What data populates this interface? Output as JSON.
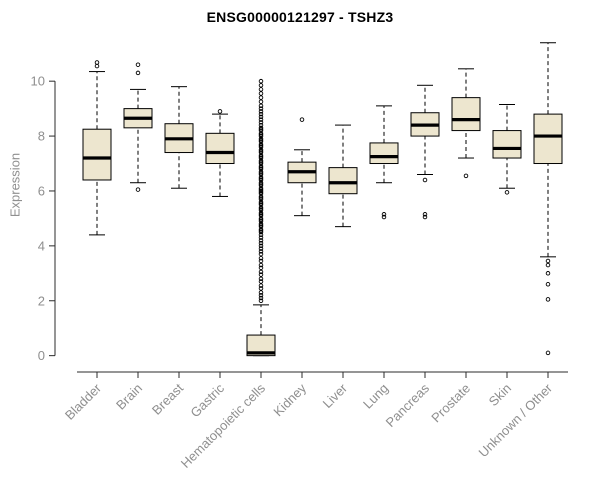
{
  "chart_data": {
    "type": "boxplot",
    "title": "ENSG00000121297 - TSHZ3",
    "xlabel": "",
    "ylabel": "Expression",
    "ylim": [
      -0.45,
      11.5
    ],
    "yticks": [
      0,
      2,
      4,
      6,
      8,
      10
    ],
    "grid": false,
    "legend": "none",
    "box_fill": "#EDE6CF",
    "box_stroke": "#000000",
    "median_color": "#000000",
    "label_color": "#8f8f8f",
    "axis_color": "#2b2b2b",
    "categories": [
      "Bladder",
      "Brain",
      "Breast",
      "Gastric",
      "Hematopoietic cells",
      "Kidney",
      "Liver",
      "Lung",
      "Pancreas",
      "Prostate",
      "Skin",
      "Unknown / Other"
    ],
    "series": [
      {
        "category": "Bladder",
        "low": 4.4,
        "q1": 6.4,
        "median": 7.2,
        "q3": 8.25,
        "high": 10.35,
        "outliers": [
          10.68,
          10.55
        ]
      },
      {
        "category": "Brain",
        "low": 6.3,
        "q1": 8.3,
        "median": 8.65,
        "q3": 9.0,
        "high": 9.7,
        "outliers": [
          10.6,
          10.3,
          6.05
        ]
      },
      {
        "category": "Breast",
        "low": 6.1,
        "q1": 7.4,
        "median": 7.9,
        "q3": 8.45,
        "high": 9.8,
        "outliers": []
      },
      {
        "category": "Gastric",
        "low": 5.8,
        "q1": 7.0,
        "median": 7.4,
        "q3": 8.1,
        "high": 8.8,
        "outliers": [
          8.9
        ]
      },
      {
        "category": "Hematopoietic cells",
        "low": 0.0,
        "q1": 0.0,
        "median": 0.1,
        "q3": 0.75,
        "high": 1.85,
        "outliers": [
          2.0,
          2.1,
          2.2,
          2.3,
          2.45,
          2.55,
          2.7,
          2.8,
          2.95,
          3.05,
          3.2,
          3.3,
          3.45,
          3.55,
          3.7,
          3.8,
          3.9,
          4.0,
          4.1,
          4.2,
          4.3,
          4.4,
          4.5,
          4.55,
          4.6,
          4.7,
          4.75,
          4.8,
          4.9,
          4.95,
          5.0,
          5.1,
          5.15,
          5.2,
          5.3,
          5.35,
          5.4,
          5.5,
          5.55,
          5.6,
          5.7,
          5.75,
          5.8,
          5.9,
          5.95,
          6.0,
          6.05,
          6.1,
          6.2,
          6.25,
          6.3,
          6.4,
          6.45,
          6.5,
          6.6,
          6.65,
          6.7,
          6.8,
          6.85,
          6.9,
          7.0,
          7.05,
          7.1,
          7.2,
          7.25,
          7.3,
          7.4,
          7.45,
          7.5,
          7.6,
          7.65,
          7.7,
          7.8,
          7.85,
          7.9,
          8.0,
          8.05,
          8.1,
          8.2,
          8.25,
          8.3,
          8.4,
          8.5,
          8.6,
          8.7,
          8.8,
          8.9,
          9.0,
          9.1,
          9.25,
          9.4,
          9.55,
          9.7,
          9.85,
          10.0
        ]
      },
      {
        "category": "Kidney",
        "low": 5.1,
        "q1": 6.3,
        "median": 6.7,
        "q3": 7.05,
        "high": 7.5,
        "outliers": [
          8.6
        ]
      },
      {
        "category": "Liver",
        "low": 4.7,
        "q1": 5.9,
        "median": 6.3,
        "q3": 6.85,
        "high": 8.4,
        "outliers": []
      },
      {
        "category": "Lung",
        "low": 6.3,
        "q1": 7.0,
        "median": 7.25,
        "q3": 7.75,
        "high": 9.1,
        "outliers": [
          5.15,
          5.05
        ]
      },
      {
        "category": "Pancreas",
        "low": 6.6,
        "q1": 8.0,
        "median": 8.4,
        "q3": 8.85,
        "high": 9.85,
        "outliers": [
          6.4,
          5.15,
          5.05
        ]
      },
      {
        "category": "Prostate",
        "low": 7.2,
        "q1": 8.2,
        "median": 8.6,
        "q3": 9.4,
        "high": 10.45,
        "outliers": [
          6.55
        ]
      },
      {
        "category": "Skin",
        "low": 6.1,
        "q1": 7.2,
        "median": 7.55,
        "q3": 8.2,
        "high": 9.15,
        "outliers": [
          5.95
        ]
      },
      {
        "category": "Unknown / Other",
        "low": 3.6,
        "q1": 7.0,
        "median": 8.0,
        "q3": 8.8,
        "high": 11.4,
        "outliers": [
          3.45,
          3.3,
          3.0,
          2.6,
          2.05,
          0.1
        ]
      }
    ]
  }
}
